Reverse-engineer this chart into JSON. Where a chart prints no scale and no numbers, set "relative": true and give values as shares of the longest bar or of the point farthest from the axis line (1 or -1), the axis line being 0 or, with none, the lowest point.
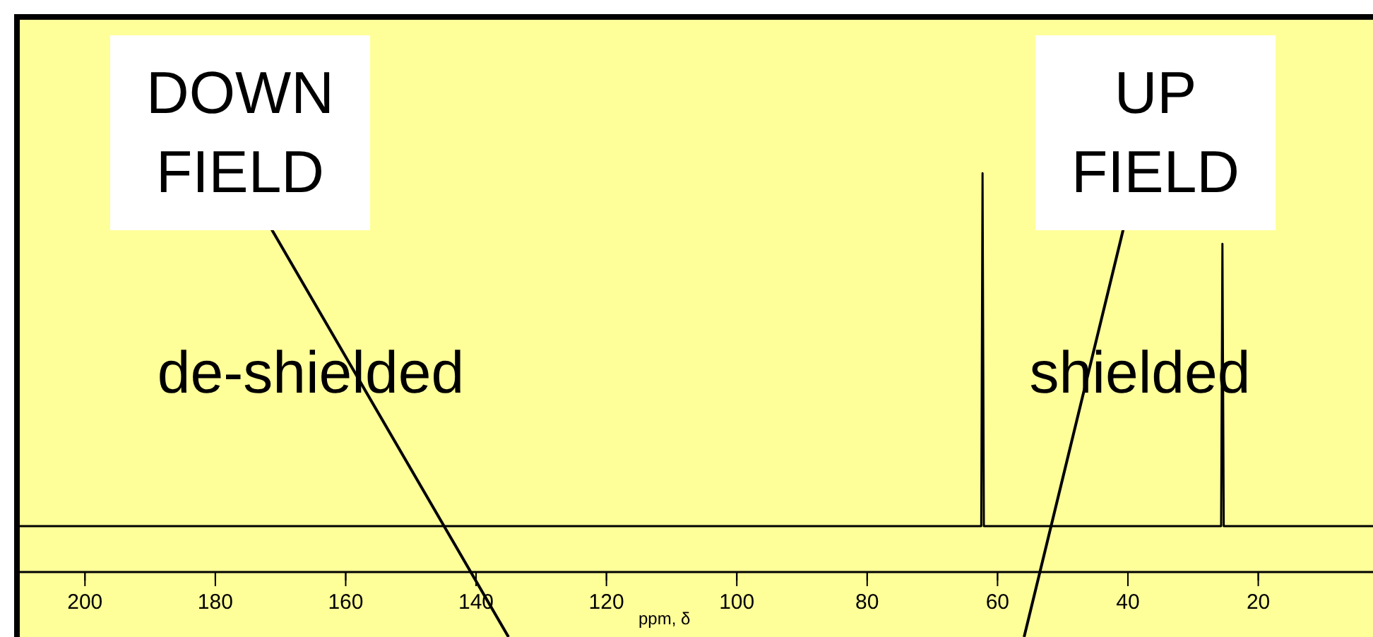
{
  "chart_data": {
    "type": "line",
    "relative": true,
    "xlabel": "ppm, δ",
    "x": [
      210,
      62.5,
      62.3,
      62.1,
      25.7,
      25.5,
      25.3,
      2.4
    ],
    "series": [
      {
        "color": "#000000",
        "values": [
          0,
          0,
          1,
          0,
          0,
          0.8,
          0,
          0
        ]
      }
    ],
    "xlim": [
      210,
      2.4
    ],
    "xticks": [
      200,
      180,
      160,
      140,
      120,
      100,
      80,
      60,
      40,
      20
    ],
    "annotations": [
      "DOWN FIELD",
      "UP FIELD",
      "de-shielded",
      "shielded"
    ]
  }
}
